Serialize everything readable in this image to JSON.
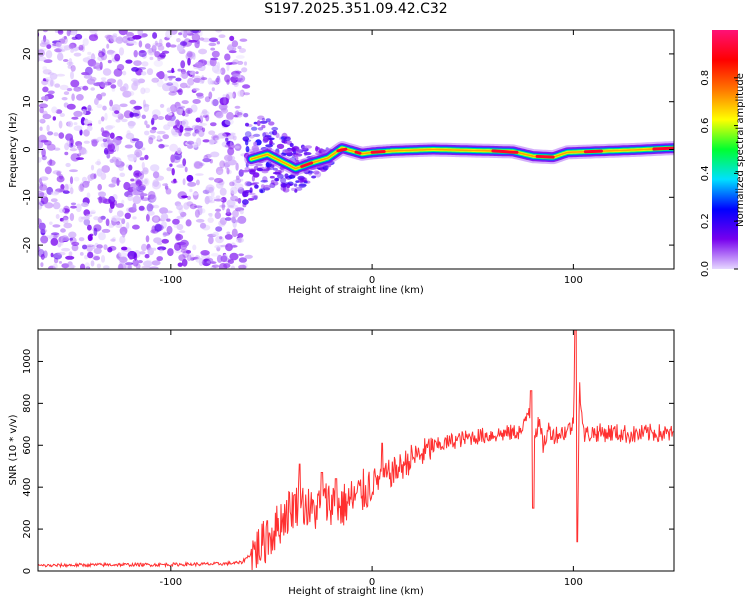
{
  "figure": {
    "title": "S197.2025.351.09.42.C32"
  },
  "chart_data": [
    {
      "type": "heatmap",
      "xlabel": "Height of straight line (km)",
      "ylabel": "Frequency (Hz)",
      "xlim": [
        -166,
        150
      ],
      "ylim": [
        -25,
        25
      ],
      "xticks": [
        -100,
        0,
        100
      ],
      "yticks": [
        -20,
        -10,
        0,
        10,
        20
      ],
      "grid": false,
      "noise_region_x": [
        -166,
        -63
      ],
      "transition_region_x": [
        -63,
        -20
      ],
      "signal_ridge": [
        {
          "x": -60,
          "y": -2.0
        },
        {
          "x": -52,
          "y": -1.0
        },
        {
          "x": -45,
          "y": -2.5
        },
        {
          "x": -38,
          "y": -4.0
        },
        {
          "x": -30,
          "y": -2.8
        },
        {
          "x": -22,
          "y": -1.8
        },
        {
          "x": -15,
          "y": 0.3
        },
        {
          "x": -5,
          "y": -0.9
        },
        {
          "x": 0,
          "y": -0.6
        },
        {
          "x": 10,
          "y": -0.3
        },
        {
          "x": 30,
          "y": 0.0
        },
        {
          "x": 50,
          "y": -0.2
        },
        {
          "x": 70,
          "y": -0.4
        },
        {
          "x": 80,
          "y": -1.4
        },
        {
          "x": 90,
          "y": -1.6
        },
        {
          "x": 97,
          "y": -0.6
        },
        {
          "x": 110,
          "y": -0.4
        },
        {
          "x": 130,
          "y": -0.1
        },
        {
          "x": 150,
          "y": 0.3
        }
      ],
      "colorbar": {
        "label": "Normalized spectral amplitude",
        "range": [
          0,
          1
        ],
        "ticks": [
          0.0,
          0.2,
          0.4,
          0.6,
          0.8
        ],
        "tick_labels": [
          "0.0",
          "0.2",
          "0.4",
          "0.6",
          "0.8"
        ],
        "colors": [
          "#e6d8ff",
          "#7700ee",
          "#0000ff",
          "#00e0ff",
          "#00ff30",
          "#ffff00",
          "#ff7700",
          "#ff0000",
          "#ff1177"
        ]
      }
    },
    {
      "type": "line",
      "xlabel": "Height of straight line (km)",
      "ylabel": "SNR (10 * v/v)",
      "xlim": [
        -166,
        150
      ],
      "ylim": [
        0,
        1150
      ],
      "xticks": [
        -100,
        0,
        100
      ],
      "yticks": [
        0,
        200,
        400,
        600,
        800,
        1000
      ],
      "color": "#ff3030",
      "series": [
        {
          "name": "SNR",
          "x": [
            -166,
            -150,
            -130,
            -110,
            -90,
            -75,
            -65,
            -58,
            -52,
            -48,
            -44,
            -40,
            -36,
            -33,
            -30,
            -27,
            -24,
            -20,
            -16,
            -12,
            -8,
            -4,
            0,
            4,
            8,
            12,
            16,
            20,
            25,
            30,
            40,
            50,
            60,
            70,
            75,
            78,
            80,
            83,
            85,
            88,
            90,
            95,
            98,
            100,
            101,
            102,
            103,
            105,
            110,
            120,
            130,
            140,
            150
          ],
          "y": [
            25,
            28,
            30,
            30,
            32,
            34,
            40,
            100,
            150,
            200,
            260,
            300,
            330,
            310,
            280,
            300,
            320,
            330,
            300,
            330,
            350,
            380,
            420,
            440,
            460,
            480,
            510,
            540,
            560,
            590,
            620,
            640,
            650,
            660,
            670,
            780,
            650,
            700,
            600,
            680,
            650,
            660,
            680,
            700,
            1150,
            140,
            900,
            650,
            660,
            660,
            650,
            660,
            650
          ],
          "spikes": [
            {
              "x": -52,
              "y": 240
            },
            {
              "x": -36,
              "y": 510
            },
            {
              "x": -25,
              "y": 470
            },
            {
              "x": -18,
              "y": 440
            },
            {
              "x": 5,
              "y": 610
            },
            {
              "x": 79,
              "y": 860
            },
            {
              "x": 80,
              "y": 300
            },
            {
              "x": 101,
              "y": 1150
            },
            {
              "x": 102,
              "y": 140
            }
          ]
        }
      ]
    }
  ]
}
